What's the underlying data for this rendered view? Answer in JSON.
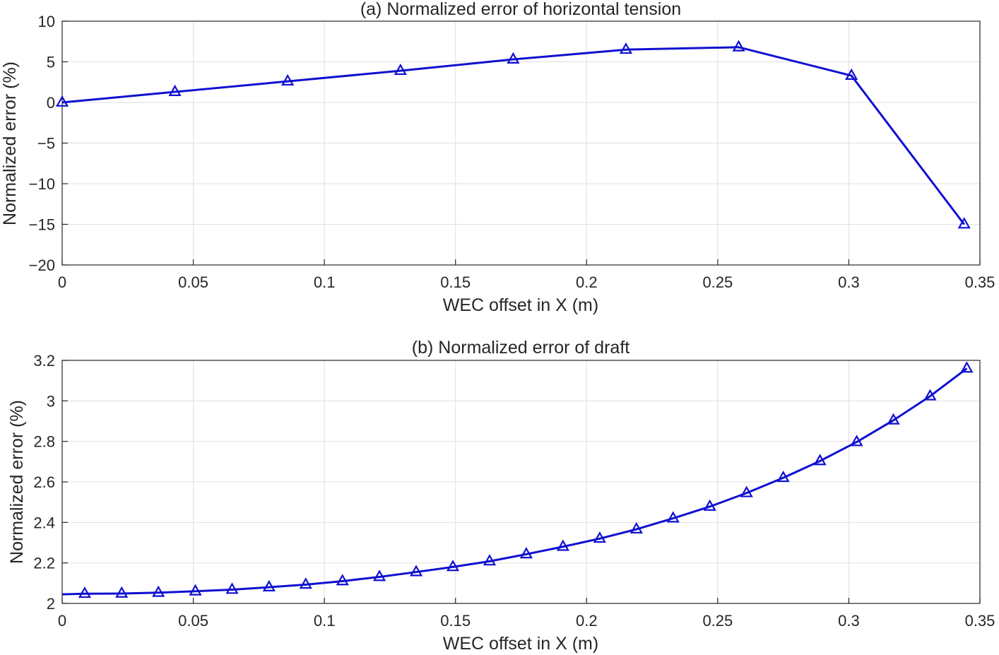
{
  "chart_data": [
    {
      "type": "line",
      "title": "(a) Normalized error of horizontal tension",
      "xlabel": "WEC offset in X (m)",
      "ylabel": "Normalized error (%)",
      "xlim": [
        0,
        0.35
      ],
      "ylim": [
        -20,
        10
      ],
      "xticks": [
        0,
        0.05,
        0.1,
        0.15,
        0.2,
        0.25,
        0.3,
        0.35
      ],
      "xtick_labels": [
        "0",
        "0.05",
        "0.1",
        "0.15",
        "0.2",
        "0.25",
        "0.3",
        "0.35"
      ],
      "yticks": [
        10,
        5,
        0,
        -5,
        -10,
        -15,
        -20
      ],
      "ytick_labels": [
        "10",
        "5",
        "0",
        "−5",
        "−10",
        "−15",
        "−20"
      ],
      "grid": true,
      "color": "#1010d0",
      "marker": "triangle",
      "series": [
        {
          "x": [
            0,
            0.043,
            0.086,
            0.129,
            0.172,
            0.215,
            0.258,
            0.301,
            0.344
          ],
          "y": [
            0.0,
            1.3,
            2.6,
            3.9,
            5.3,
            6.5,
            6.8,
            3.3,
            -15.0
          ]
        }
      ]
    },
    {
      "type": "line",
      "title": "(b) Normalized error of draft",
      "xlabel": "WEC offset in X (m)",
      "ylabel": "Normalized error (%)",
      "xlim": [
        0,
        0.35
      ],
      "ylim": [
        2,
        3.2
      ],
      "xticks": [
        0,
        0.05,
        0.1,
        0.15,
        0.2,
        0.25,
        0.3,
        0.35
      ],
      "xtick_labels": [
        "0",
        "0.05",
        "0.1",
        "0.15",
        "0.2",
        "0.25",
        "0.3",
        "0.35"
      ],
      "yticks": [
        3.2,
        3,
        2.8,
        2.6,
        2.4,
        2.2,
        2
      ],
      "ytick_labels": [
        "3.2",
        "3",
        "2.8",
        "2.6",
        "2.4",
        "2.2",
        "2"
      ],
      "grid": true,
      "color": "#1010d0",
      "marker": "triangle",
      "line_start": {
        "x": 0,
        "y": 2.045
      },
      "series": [
        {
          "x": [
            0.0086,
            0.0227,
            0.0367,
            0.0508,
            0.0648,
            0.0789,
            0.0929,
            0.1069,
            0.121,
            0.135,
            0.149,
            0.163,
            0.177,
            0.191,
            0.205,
            0.219,
            0.233,
            0.247,
            0.261,
            0.275,
            0.289,
            0.303,
            0.317,
            0.331,
            0.345
          ],
          "y": [
            2.048,
            2.049,
            2.053,
            2.06,
            2.068,
            2.08,
            2.093,
            2.11,
            2.131,
            2.155,
            2.18,
            2.208,
            2.243,
            2.28,
            2.32,
            2.366,
            2.42,
            2.478,
            2.545,
            2.62,
            2.703,
            2.797,
            2.904,
            3.023,
            3.16
          ]
        }
      ]
    }
  ]
}
